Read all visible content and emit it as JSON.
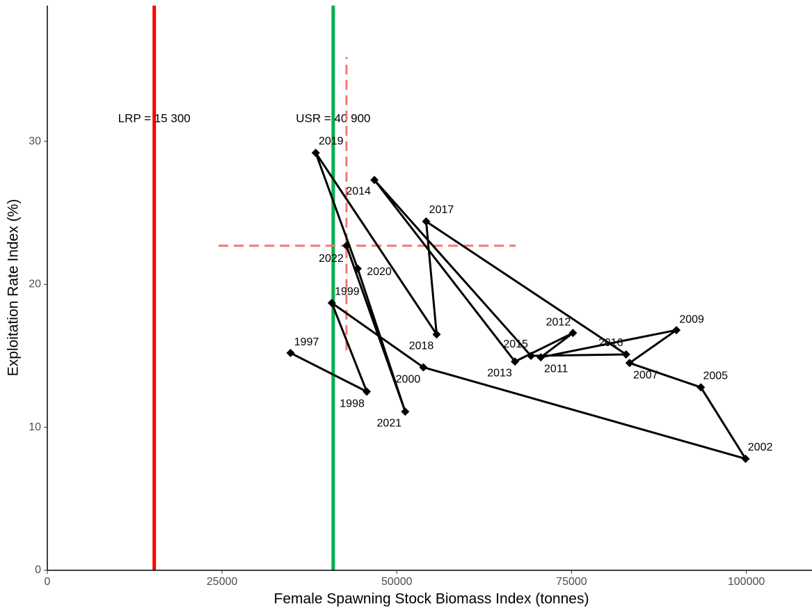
{
  "chart_data": {
    "type": "path",
    "x_label": "Female Spawning Stock Biomass Index (tonnes)",
    "y_label": "Exploitation Rate Index (%)",
    "point_labels": [
      "1997",
      "1998",
      "1999",
      "2000",
      "2002",
      "2005",
      "2007",
      "2009",
      "2011",
      "2012",
      "2013",
      "2014",
      "2015",
      "2016",
      "2017",
      "2018",
      "2019",
      "2020",
      "2021",
      "2022"
    ],
    "x": [
      34800,
      45700,
      40700,
      53800,
      99900,
      93500,
      83300,
      90000,
      70600,
      75200,
      66900,
      46800,
      69200,
      82800,
      54200,
      55700,
      38400,
      44400,
      51200,
      42800
    ],
    "values": [
      15.2,
      12.5,
      18.7,
      14.2,
      7.8,
      12.8,
      14.5,
      16.8,
      14.9,
      16.6,
      14.6,
      27.3,
      15.0,
      15.1,
      24.4,
      16.5,
      29.2,
      21.1,
      11.1,
      22.7
    ],
    "color": "#000000",
    "xlim": [
      0,
      109400
    ],
    "ylim": [
      0,
      39.5
    ],
    "xticks": [
      0,
      25000,
      50000,
      75000,
      100000
    ],
    "yticks": [
      0,
      10,
      20,
      30
    ],
    "reference_lines": [
      {
        "x": 15300,
        "color": "#ff0000",
        "label": "LRP = 15 300"
      },
      {
        "x": 40900,
        "color": "#00b050",
        "label": "USR = 40 900"
      }
    ],
    "crosshair": {
      "x": 42800,
      "y": 22.7,
      "xrange": [
        24500,
        67000
      ],
      "yrange": [
        15.4,
        35.9
      ],
      "color": "#f8766d"
    }
  }
}
